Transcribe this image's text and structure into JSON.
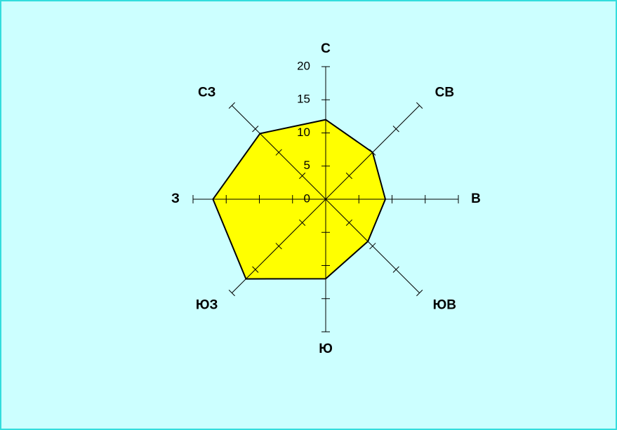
{
  "chart_data": {
    "type": "radar",
    "categories": [
      "С",
      "СВ",
      "В",
      "ЮВ",
      "Ю",
      "ЮЗ",
      "З",
      "СЗ"
    ],
    "values": [
      12,
      10,
      9,
      9,
      12,
      17,
      17,
      14
    ],
    "color": "#ffff00",
    "ylim": [
      0,
      20
    ],
    "yticks": [
      0,
      5,
      10,
      15,
      20
    ]
  }
}
